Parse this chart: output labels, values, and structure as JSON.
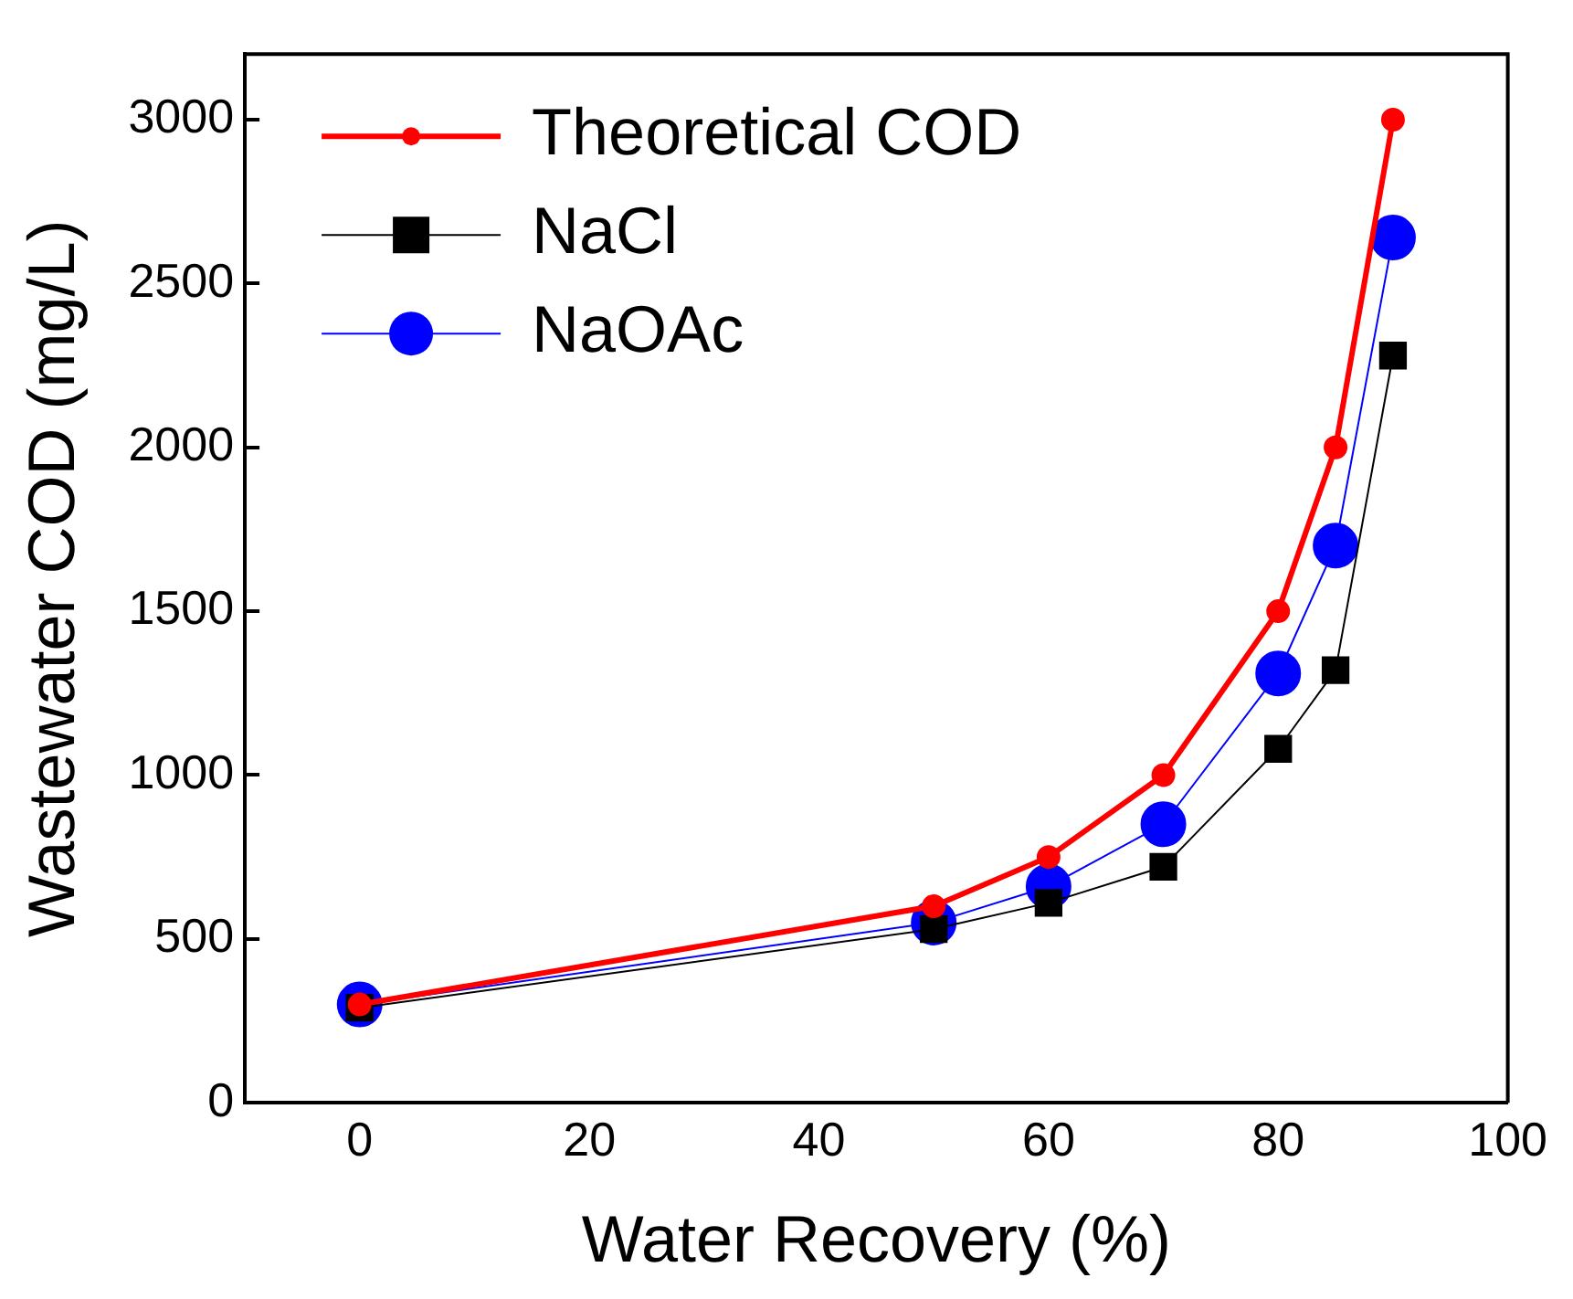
{
  "chart_data": {
    "type": "line",
    "xlabel": "Water Recovery (%)",
    "ylabel": "Wastewater COD (mg/L)",
    "x": [
      0,
      50,
      60,
      70,
      80,
      85,
      90
    ],
    "series": [
      {
        "name": "Theoretical COD",
        "color": "#ff0000",
        "marker": "circle",
        "values": [
          300,
          600,
          750,
          1000,
          1500,
          2000,
          3000
        ]
      },
      {
        "name": "NaCl",
        "color": "#000000",
        "marker": "square",
        "values": [
          290,
          530,
          610,
          720,
          1080,
          1320,
          2280
        ]
      },
      {
        "name": "NaOAc",
        "color": "#0000ff",
        "marker": "circle",
        "values": [
          300,
          550,
          660,
          850,
          1310,
          1700,
          2640
        ]
      }
    ],
    "xlim": [
      -10,
      100
    ],
    "xticks": [
      0,
      20,
      40,
      60,
      80,
      100
    ],
    "ylim": [
      0,
      3200
    ],
    "yticks": [
      0,
      500,
      1000,
      1500,
      2000,
      2500,
      3000
    ],
    "grid": false,
    "legend": "top left"
  }
}
